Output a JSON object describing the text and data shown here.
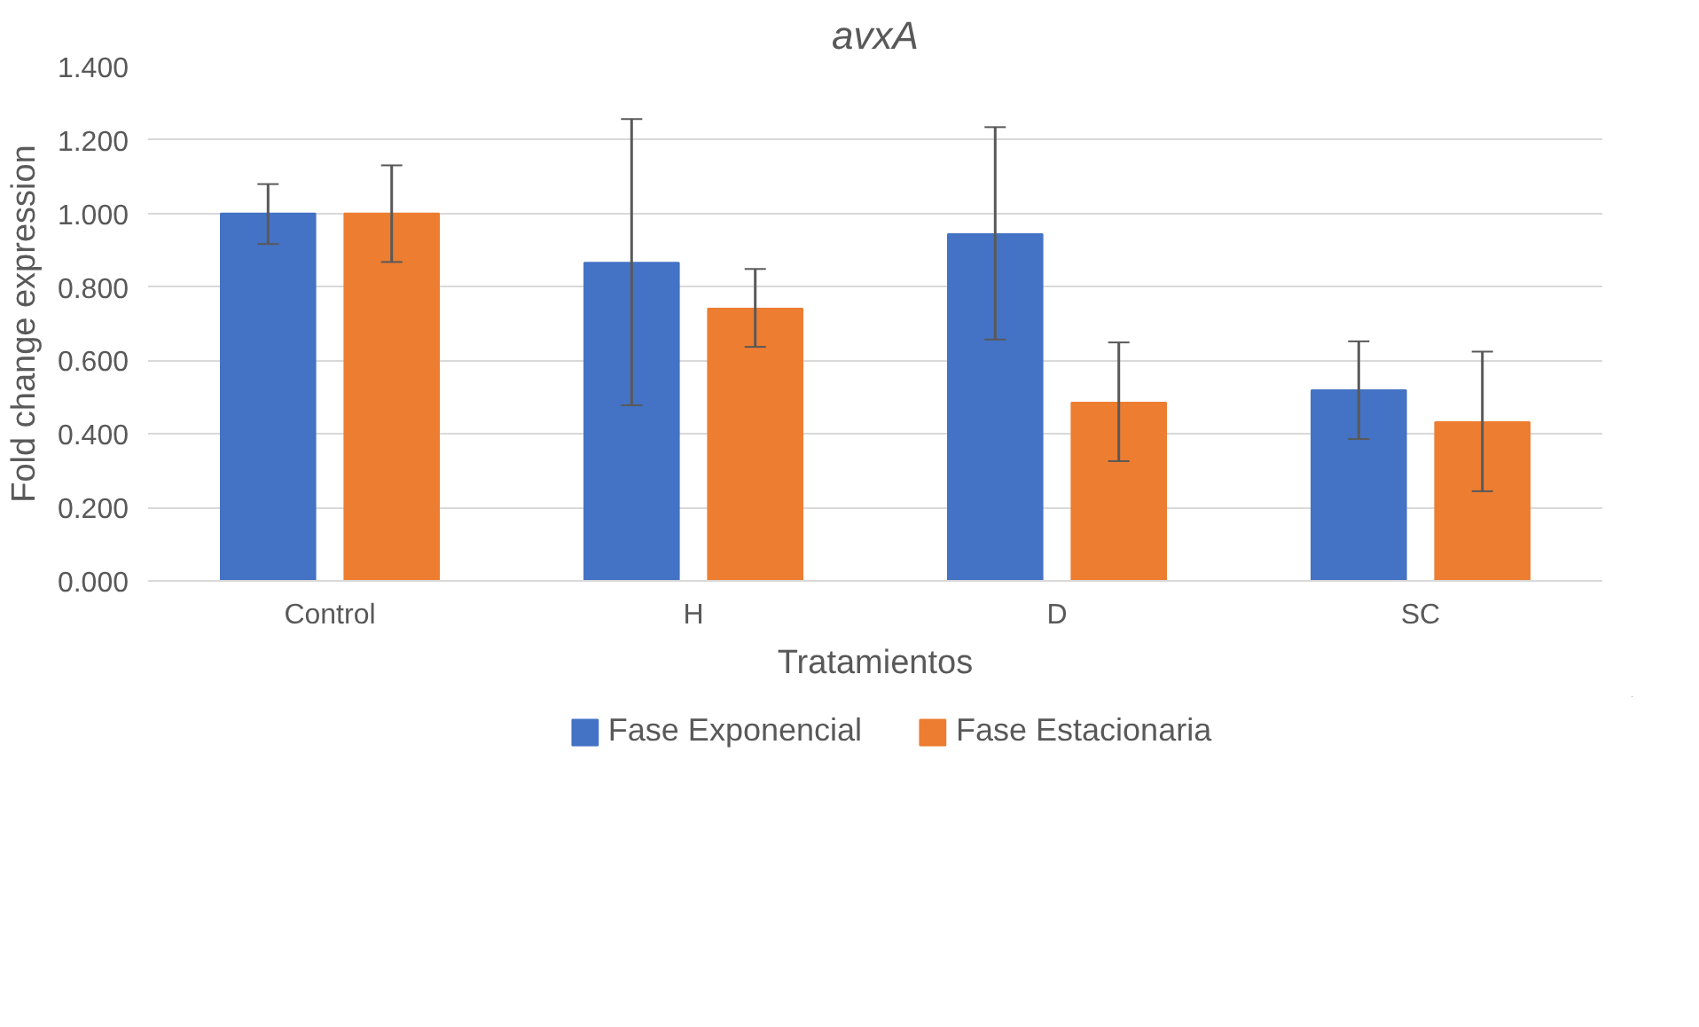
{
  "chart_data": {
    "type": "bar",
    "title": "avxA",
    "xlabel": "Tratamientos",
    "ylabel": "Fold change expression",
    "categories": [
      "Control",
      "H",
      "D",
      "SC"
    ],
    "series": [
      {
        "name": "Fase Exponencial",
        "color": "#4472c4",
        "values": [
          1.0,
          0.866,
          0.944,
          0.519
        ],
        "errors": [
          [
            0.917,
            1.08
          ],
          [
            0.478,
            1.257
          ],
          [
            0.657,
            1.235
          ],
          [
            0.386,
            0.652
          ]
        ]
      },
      {
        "name": "Fase Estacionaria",
        "color": "#ed7d31",
        "values": [
          1.0,
          0.741,
          0.485,
          0.432
        ],
        "errors": [
          [
            0.868,
            1.131
          ],
          [
            0.637,
            0.849
          ],
          [
            0.326,
            0.649
          ],
          [
            0.244,
            0.624
          ]
        ]
      }
    ],
    "ylim": [
      0,
      1.4
    ],
    "yticks": [
      {
        "value": 0,
        "label": "0.000"
      },
      {
        "value": 0.2,
        "label": "0.200"
      },
      {
        "value": 0.4,
        "label": "0.400"
      },
      {
        "value": 0.6,
        "label": "0.600"
      },
      {
        "value": 0.8,
        "label": "0.800"
      },
      {
        "value": 1.0,
        "label": "1.000"
      },
      {
        "value": 1.2,
        "label": "1.200"
      },
      {
        "value": 1.4,
        "label": "1.400"
      }
    ],
    "grid": "y",
    "legend": "bottom"
  }
}
